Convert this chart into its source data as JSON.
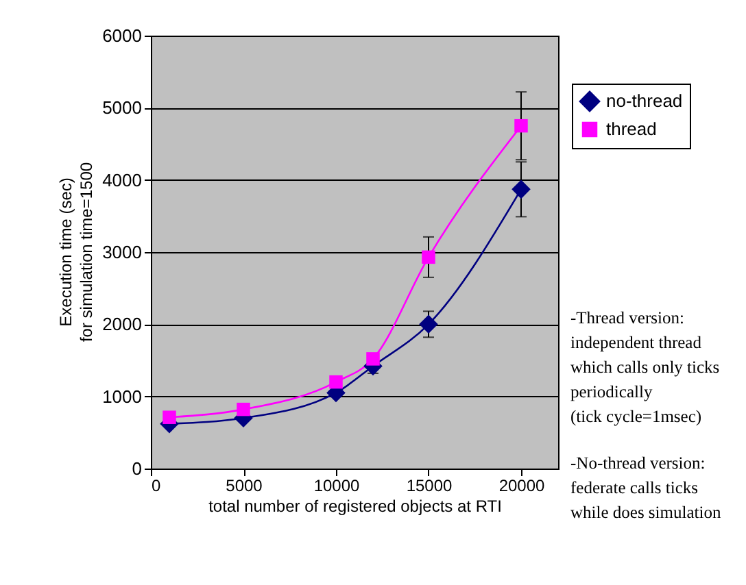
{
  "chart_data": {
    "type": "line",
    "x": [
      1000,
      5000,
      10000,
      12000,
      15000,
      20000
    ],
    "xlabel": "total number of registered objects at RTI",
    "ylabel": "Execution time (sec)\nfor simulation time=1500",
    "xlim": [
      0,
      22000
    ],
    "xticks": [
      0,
      5000,
      10000,
      15000,
      20000
    ],
    "ylim": [
      0,
      6000
    ],
    "yticks": [
      0,
      1000,
      2000,
      3000,
      4000,
      5000,
      6000
    ],
    "grid": "y",
    "legend": "right",
    "series": [
      {
        "name": "no-thread",
        "color": "#000080",
        "marker": "diamond",
        "values": [
          620,
          700,
          1050,
          1420,
          2000,
          3870
        ],
        "errors": [
          null,
          null,
          null,
          100,
          180,
          380
        ]
      },
      {
        "name": "thread",
        "color": "#ff00ff",
        "marker": "square",
        "values": [
          710,
          820,
          1200,
          1520,
          2930,
          4750
        ],
        "errors": [
          null,
          null,
          null,
          null,
          280,
          470
        ]
      }
    ],
    "annotations": [
      "-Thread version:\nindependent thread\nwhich calls only ticks\n periodically\n(tick cycle=1msec)",
      "-No-thread version:\nfederate calls ticks\nwhile does simulation"
    ]
  }
}
